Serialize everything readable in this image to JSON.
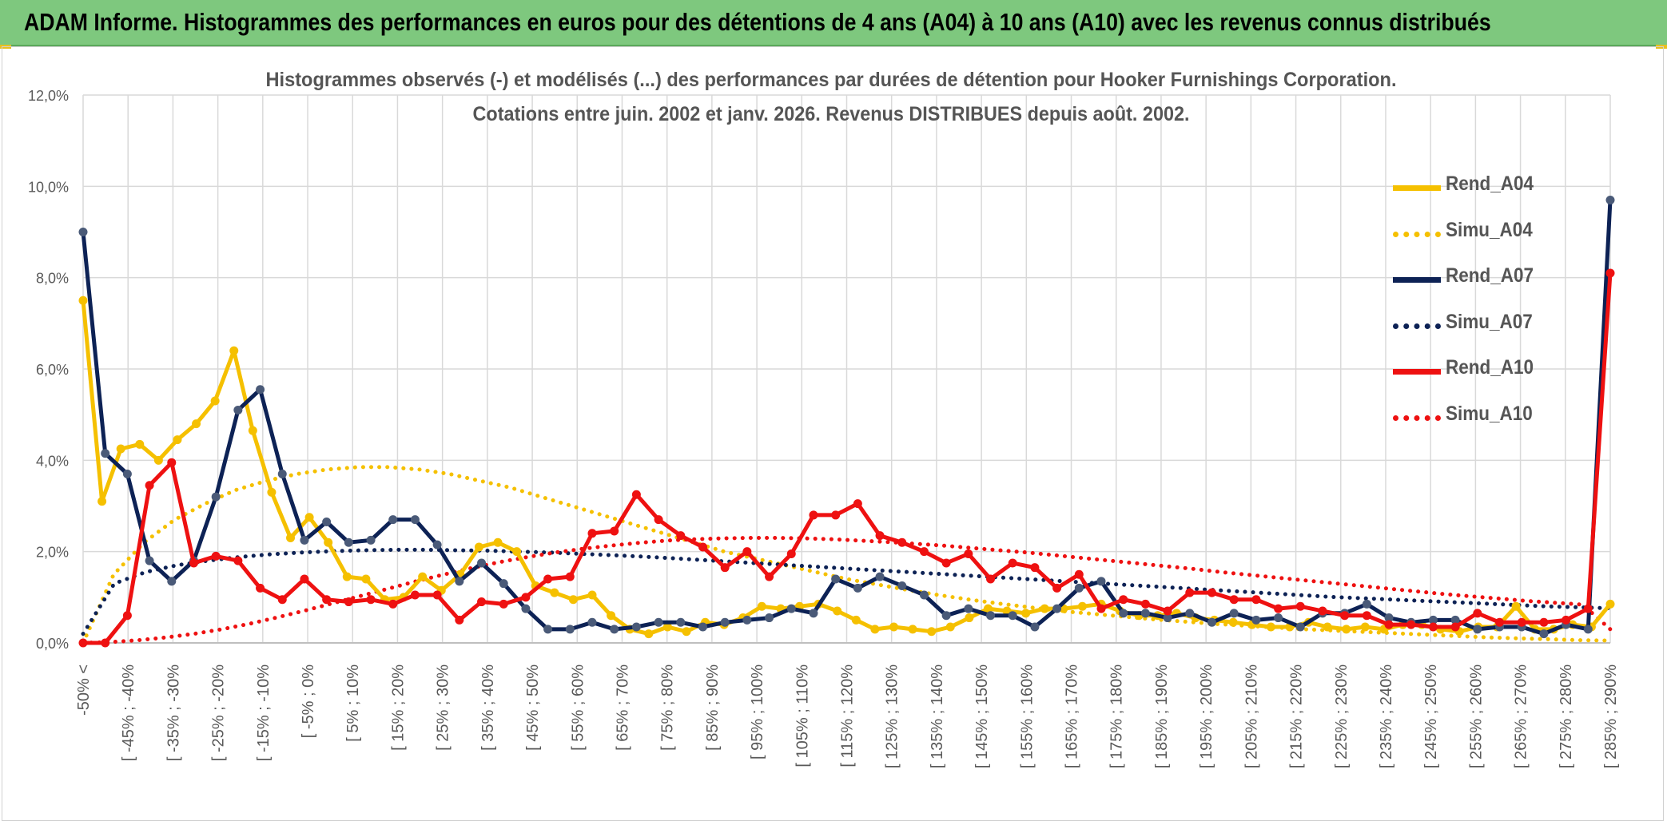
{
  "banner": {
    "title": "ADAM Informe. Histogrammes des performances en euros pour des détentions de 4 ans (A04) à 10 ans (A10) avec les revenus connus distribués"
  },
  "colors": {
    "banner_bg": "#7ec87e",
    "a04": "#f5c000",
    "a07": "#0d2255",
    "a10": "#ee1111",
    "marker_a07": "#4a5a78"
  },
  "chart_data": {
    "type": "line",
    "title": "Histogrammes observés (-) et modélisés (...) des performances par durées de détention pour Hooker Furnishings Corporation.",
    "subtitle": "Cotations entre juin. 2002 et janv. 2026. Revenus DISTRIBUES depuis août. 2002.",
    "ylim": [
      0,
      12
    ],
    "y_tick_labels": [
      "0,0%",
      "2,0%",
      "4,0%",
      "6,0%",
      "8,0%",
      "10,0%",
      "12,0%"
    ],
    "grid": true,
    "legend_position": "right",
    "x_tick_labels": [
      "-50% <",
      "[ -45% ; -40%",
      "[ -35% ; -30%",
      "[ -25% ; -20%",
      "[ -15% ; -10%",
      "[ -5% ; 0%",
      "[ 5% ; 10%",
      "[ 15% ; 20%",
      "[ 25% ; 30%",
      "[ 35% ; 40%",
      "[ 45% ; 50%",
      "[ 55% ; 60%",
      "[ 65% ; 70%",
      "[ 75% ; 80%",
      "[ 85% ; 90%",
      "[ 95% ; 100%",
      "[ 105% ; 110%",
      "[ 115% ; 120%",
      "[ 125% ; 130%",
      "[ 135% ; 140%",
      "[ 145% ; 150%",
      "[ 155% ; 160%",
      "[ 165% ; 170%",
      "[ 175% ; 180%",
      "[ 185% ; 190%",
      "[ 195% ; 200%",
      "[ 205% ; 210%",
      "[ 215% ; 220%",
      "[ 225% ; 230%",
      "[ 235% ; 240%",
      "[ 245% ; 250%",
      "[ 255% ; 260%",
      "[ 265% ; 270%",
      "[ 275% ; 280%",
      "[ 285% ; 290%"
    ],
    "series": [
      {
        "name": "Rend_A04",
        "style": "solid",
        "color": "#f5c000",
        "values": [
          7.5,
          3.1,
          4.25,
          4.35,
          4.0,
          4.45,
          4.8,
          5.3,
          6.4,
          4.65,
          3.3,
          2.3,
          2.75,
          2.2,
          1.45,
          1.4,
          0.95,
          1.0,
          1.45,
          1.15,
          1.5,
          2.1,
          2.2,
          2.0,
          1.25,
          1.1,
          0.95,
          1.05,
          0.6,
          0.3,
          0.2,
          0.35,
          0.25,
          0.45,
          0.4,
          0.55,
          0.8,
          0.75,
          0.8,
          0.85,
          0.7,
          0.5,
          0.3,
          0.35,
          0.3,
          0.25,
          0.35,
          0.55,
          0.75,
          0.7,
          0.65,
          0.75,
          0.75,
          0.8,
          0.85,
          0.7,
          0.6,
          0.6,
          0.65,
          0.55,
          0.5,
          0.45,
          0.4,
          0.35,
          0.35,
          0.45,
          0.35,
          0.3,
          0.35,
          0.3,
          0.4,
          0.4,
          0.3,
          0.25,
          0.35,
          0.35,
          0.8,
          0.3,
          0.3,
          0.4,
          0.35,
          0.85
        ]
      },
      {
        "name": "Simu_A04",
        "style": "dotted",
        "color": "#f5c000",
        "values": [
          0.0,
          1.5,
          2.2,
          2.7,
          3.05,
          3.35,
          3.55,
          3.7,
          3.8,
          3.85,
          3.85,
          3.8,
          3.7,
          3.55,
          3.4,
          3.2,
          3.0,
          2.8,
          2.6,
          2.4,
          2.2,
          2.0,
          1.85,
          1.7,
          1.55,
          1.4,
          1.28,
          1.16,
          1.05,
          0.95,
          0.86,
          0.78,
          0.7,
          0.64,
          0.58,
          0.52,
          0.47,
          0.42,
          0.38,
          0.34,
          0.3,
          0.27,
          0.24,
          0.21,
          0.18,
          0.15,
          0.12,
          0.1,
          0.08,
          0.06,
          0.05
        ]
      },
      {
        "name": "Rend_A07",
        "style": "solid",
        "color": "#0d2255",
        "values": [
          9.0,
          4.15,
          3.7,
          1.8,
          1.35,
          1.8,
          3.2,
          5.1,
          5.55,
          3.7,
          2.25,
          2.65,
          2.2,
          2.25,
          2.7,
          2.7,
          2.15,
          1.35,
          1.75,
          1.3,
          0.75,
          0.3,
          0.3,
          0.45,
          0.3,
          0.35,
          0.45,
          0.45,
          0.35,
          0.45,
          0.5,
          0.55,
          0.75,
          0.65,
          1.4,
          1.2,
          1.45,
          1.25,
          1.05,
          0.6,
          0.75,
          0.6,
          0.6,
          0.35,
          0.75,
          1.2,
          1.35,
          0.65,
          0.65,
          0.55,
          0.65,
          0.45,
          0.65,
          0.5,
          0.55,
          0.35,
          0.65,
          0.65,
          0.85,
          0.55,
          0.45,
          0.5,
          0.5,
          0.3,
          0.35,
          0.35,
          0.2,
          0.4,
          0.3,
          9.7
        ]
      },
      {
        "name": "Simu_A07",
        "style": "dotted",
        "color": "#0d2255",
        "values": [
          0.2,
          1.3,
          1.55,
          1.7,
          1.8,
          1.88,
          1.94,
          1.98,
          2.01,
          2.03,
          2.04,
          2.04,
          2.03,
          2.02,
          2.0,
          1.98,
          1.95,
          1.92,
          1.89,
          1.85,
          1.81,
          1.77,
          1.73,
          1.69,
          1.65,
          1.61,
          1.57,
          1.53,
          1.49,
          1.45,
          1.41,
          1.37,
          1.33,
          1.29,
          1.25,
          1.21,
          1.17,
          1.13,
          1.09,
          1.05,
          1.01,
          0.98,
          0.95,
          0.92,
          0.89,
          0.86,
          0.83,
          0.8,
          0.78,
          0.76
        ]
      },
      {
        "name": "Rend_A10",
        "style": "solid",
        "color": "#ee1111",
        "values": [
          0.0,
          0.0,
          0.6,
          3.45,
          3.95,
          1.75,
          1.9,
          1.8,
          1.2,
          0.95,
          1.4,
          0.95,
          0.9,
          0.95,
          0.85,
          1.05,
          1.05,
          0.5,
          0.9,
          0.85,
          1.0,
          1.4,
          1.45,
          2.4,
          2.45,
          3.25,
          2.7,
          2.35,
          2.1,
          1.65,
          2.0,
          1.45,
          1.95,
          2.8,
          2.8,
          3.05,
          2.35,
          2.2,
          2.0,
          1.75,
          1.95,
          1.4,
          1.75,
          1.65,
          1.2,
          1.5,
          0.75,
          0.95,
          0.85,
          0.7,
          1.1,
          1.1,
          0.95,
          0.95,
          0.75,
          0.8,
          0.7,
          0.6,
          0.6,
          0.4,
          0.4,
          0.35,
          0.35,
          0.65,
          0.45,
          0.45,
          0.45,
          0.5,
          0.75,
          8.1
        ]
      },
      {
        "name": "Simu_A10",
        "style": "dotted",
        "color": "#ee1111",
        "values": [
          0.0,
          0.02,
          0.06,
          0.12,
          0.2,
          0.3,
          0.42,
          0.56,
          0.71,
          0.87,
          1.03,
          1.19,
          1.35,
          1.5,
          1.64,
          1.77,
          1.88,
          1.98,
          2.06,
          2.13,
          2.19,
          2.24,
          2.27,
          2.29,
          2.3,
          2.3,
          2.29,
          2.27,
          2.24,
          2.21,
          2.17,
          2.13,
          2.08,
          2.03,
          1.98,
          1.92,
          1.86,
          1.8,
          1.74,
          1.68,
          1.62,
          1.55,
          1.49,
          1.43,
          1.37,
          1.31,
          1.25,
          1.19,
          1.13,
          1.07,
          1.02,
          0.97,
          0.92,
          0.88,
          0.84,
          0.3
        ]
      }
    ]
  }
}
